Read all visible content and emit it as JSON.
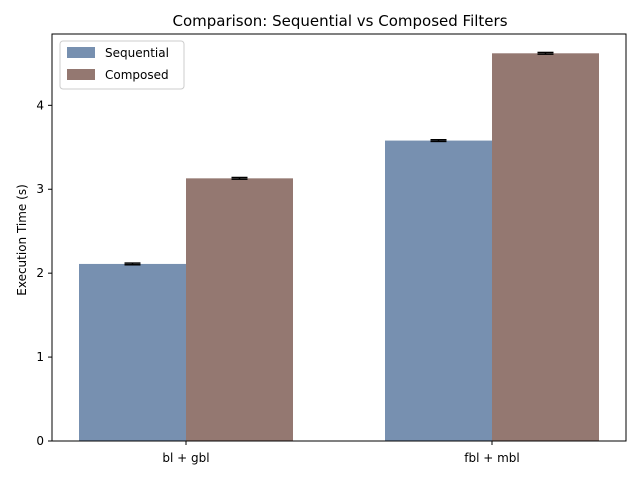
{
  "chart_data": {
    "type": "bar",
    "title": "Comparison: Sequential vs Composed Filters",
    "xlabel": "",
    "ylabel": "Execution Time (s)",
    "categories": [
      "bl + gbl",
      "fbl + mbl"
    ],
    "series": [
      {
        "name": "Sequential",
        "values": [
          2.11,
          3.58
        ],
        "errors": [
          0.01,
          0.01
        ],
        "color": "#7790b0"
      },
      {
        "name": "Composed",
        "values": [
          3.13,
          4.62
        ],
        "errors": [
          0.01,
          0.01
        ],
        "color": "#947871"
      }
    ],
    "yticks": [
      "0",
      "1",
      "2",
      "3",
      "4"
    ],
    "ylim": [
      0,
      4.85
    ],
    "grid": false,
    "legend_position": "top-left"
  }
}
